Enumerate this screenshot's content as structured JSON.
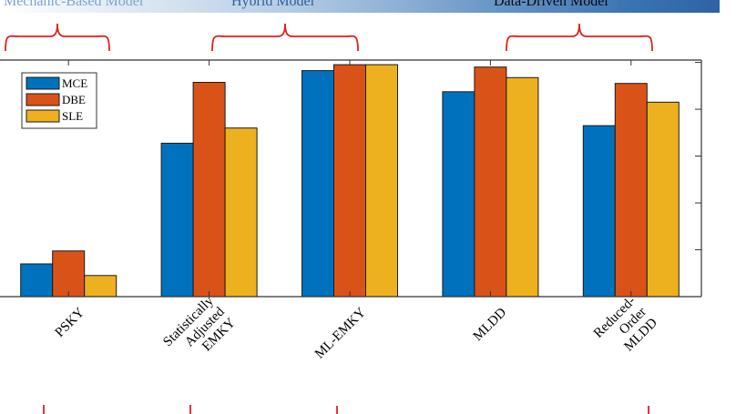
{
  "header": {
    "groups": [
      {
        "label": "Mechanic-Based Model",
        "color": "#7fa3cc"
      },
      {
        "label": "Hybrid Model",
        "color": "#2f5e9c"
      },
      {
        "label": "Data-Driven Model",
        "color": "#0a0a0a"
      }
    ]
  },
  "chart_data": {
    "type": "bar",
    "categories": [
      [
        "PSKY"
      ],
      [
        "Statistically",
        "Adjusted",
        "EMKY"
      ],
      [
        "ML-EMKY"
      ],
      [
        "MLDD"
      ],
      [
        "Reduced-",
        "Order",
        "MLDD"
      ]
    ],
    "series": [
      {
        "name": "MCE",
        "color": "#0072bd",
        "values": [
          0.14,
          0.655,
          0.965,
          0.875,
          0.73
        ]
      },
      {
        "name": "DBE",
        "color": "#d95319",
        "values": [
          0.195,
          0.915,
          0.99,
          0.98,
          0.91
        ]
      },
      {
        "name": "SLE",
        "color": "#edb120",
        "values": [
          0.09,
          0.72,
          0.99,
          0.935,
          0.83
        ]
      }
    ],
    "ylim": [
      0,
      1.01
    ],
    "grid": false,
    "legend": "top-left",
    "y_tick_labels": "none"
  }
}
